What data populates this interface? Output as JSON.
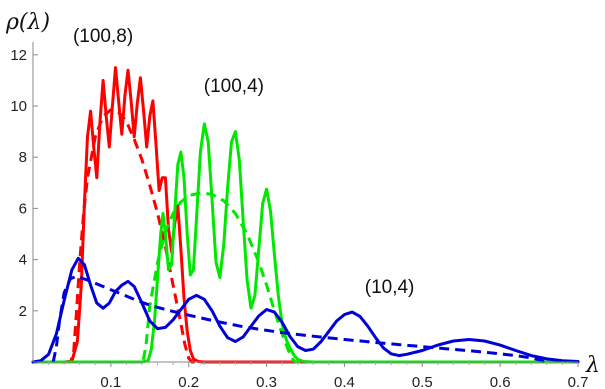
{
  "chart_data": {
    "type": "line",
    "title": "",
    "xlabel": "λ",
    "ylabel": "ρ(λ)",
    "xlim": [
      0,
      0.7
    ],
    "ylim": [
      0,
      12.5
    ],
    "grid": false,
    "legend": "none",
    "x_ticks": [
      {
        "value": 0.1,
        "label": "0.1"
      },
      {
        "value": 0.2,
        "label": "0.2"
      },
      {
        "value": 0.3,
        "label": "0.3"
      },
      {
        "value": 0.4,
        "label": "0.4"
      },
      {
        "value": 0.5,
        "label": "0.5"
      },
      {
        "value": 0.6,
        "label": "0.6"
      },
      {
        "value": 0.7,
        "label": "0.7"
      }
    ],
    "y_ticks": [
      {
        "value": 2,
        "label": "2"
      },
      {
        "value": 4,
        "label": "4"
      },
      {
        "value": 6,
        "label": "6"
      },
      {
        "value": 8,
        "label": "8"
      },
      {
        "value": 10,
        "label": "10"
      },
      {
        "value": 12,
        "label": "12"
      }
    ],
    "annotations": [
      {
        "text": "(100,8)",
        "x": 0.09,
        "y": 12.5
      },
      {
        "text": "(100,4)",
        "x": 0.258,
        "y": 10.55
      },
      {
        "text": "(10,4)",
        "x": 0.458,
        "y": 2.7
      }
    ],
    "series": [
      {
        "color": "#ff0000",
        "style": "solid",
        "points": [
          [
            0.0,
            0
          ],
          [
            0.04,
            0
          ],
          [
            0.05,
            0.03
          ],
          [
            0.057,
            0.8
          ],
          [
            0.062,
            3.0
          ],
          [
            0.066,
            6.2
          ],
          [
            0.07,
            8.8
          ],
          [
            0.074,
            9.8
          ],
          [
            0.078,
            8.4
          ],
          [
            0.082,
            7.2
          ],
          [
            0.086,
            9.4
          ],
          [
            0.09,
            11.0
          ],
          [
            0.094,
            9.6
          ],
          [
            0.098,
            8.4
          ],
          [
            0.102,
            10.0
          ],
          [
            0.106,
            11.5
          ],
          [
            0.11,
            10.2
          ],
          [
            0.114,
            8.9
          ],
          [
            0.118,
            10.4
          ],
          [
            0.122,
            11.4
          ],
          [
            0.126,
            10.2
          ],
          [
            0.13,
            8.8
          ],
          [
            0.134,
            10.1
          ],
          [
            0.138,
            11.1
          ],
          [
            0.142,
            9.8
          ],
          [
            0.146,
            8.4
          ],
          [
            0.15,
            9.6
          ],
          [
            0.154,
            10.2
          ],
          [
            0.158,
            8.5
          ],
          [
            0.162,
            6.7
          ],
          [
            0.166,
            7.2
          ],
          [
            0.17,
            7.2
          ],
          [
            0.174,
            5.2
          ],
          [
            0.178,
            4.3
          ],
          [
            0.182,
            5.4
          ],
          [
            0.186,
            6.1
          ],
          [
            0.19,
            4.4
          ],
          [
            0.194,
            2.5
          ],
          [
            0.198,
            1.2
          ],
          [
            0.202,
            0.45
          ],
          [
            0.206,
            0.12
          ],
          [
            0.212,
            0.02
          ],
          [
            0.22,
            0
          ],
          [
            0.7,
            0
          ]
        ]
      },
      {
        "color": "#ff0000",
        "style": "dashed",
        "points": [
          [
            0.0,
            0
          ],
          [
            0.048,
            0
          ],
          [
            0.052,
            0.3
          ],
          [
            0.056,
            2.0
          ],
          [
            0.06,
            3.9
          ],
          [
            0.065,
            5.8
          ],
          [
            0.07,
            7.2
          ],
          [
            0.08,
            8.8
          ],
          [
            0.09,
            9.6
          ],
          [
            0.1,
            9.85
          ],
          [
            0.11,
            9.75
          ],
          [
            0.12,
            9.4
          ],
          [
            0.13,
            8.7
          ],
          [
            0.14,
            7.9
          ],
          [
            0.15,
            6.9
          ],
          [
            0.16,
            5.8
          ],
          [
            0.17,
            4.5
          ],
          [
            0.18,
            3.0
          ],
          [
            0.19,
            1.5
          ],
          [
            0.195,
            0.7
          ],
          [
            0.2,
            0.15
          ],
          [
            0.204,
            0
          ],
          [
            0.7,
            0
          ]
        ]
      },
      {
        "color": "#00e800",
        "style": "solid",
        "points": [
          [
            0.0,
            0
          ],
          [
            0.14,
            0
          ],
          [
            0.148,
            0.05
          ],
          [
            0.152,
            0.5
          ],
          [
            0.156,
            1.6
          ],
          [
            0.16,
            3.3
          ],
          [
            0.164,
            5.0
          ],
          [
            0.167,
            5.8
          ],
          [
            0.17,
            5.0
          ],
          [
            0.174,
            3.6
          ],
          [
            0.178,
            3.8
          ],
          [
            0.182,
            5.8
          ],
          [
            0.186,
            7.7
          ],
          [
            0.19,
            8.2
          ],
          [
            0.194,
            7.2
          ],
          [
            0.198,
            5.0
          ],
          [
            0.202,
            3.4
          ],
          [
            0.206,
            3.6
          ],
          [
            0.21,
            5.6
          ],
          [
            0.215,
            8.2
          ],
          [
            0.22,
            9.3
          ],
          [
            0.225,
            8.6
          ],
          [
            0.23,
            6.3
          ],
          [
            0.235,
            3.9
          ],
          [
            0.24,
            3.3
          ],
          [
            0.245,
            4.6
          ],
          [
            0.25,
            6.8
          ],
          [
            0.255,
            8.6
          ],
          [
            0.26,
            9.0
          ],
          [
            0.265,
            7.9
          ],
          [
            0.27,
            5.5
          ],
          [
            0.275,
            3.2
          ],
          [
            0.28,
            2.1
          ],
          [
            0.285,
            2.6
          ],
          [
            0.29,
            4.4
          ],
          [
            0.295,
            6.2
          ],
          [
            0.3,
            6.75
          ],
          [
            0.305,
            5.9
          ],
          [
            0.31,
            4.2
          ],
          [
            0.315,
            2.6
          ],
          [
            0.32,
            1.5
          ],
          [
            0.325,
            0.9
          ],
          [
            0.33,
            0.55
          ],
          [
            0.335,
            0.28
          ],
          [
            0.34,
            0.1
          ],
          [
            0.348,
            0.02
          ],
          [
            0.36,
            0
          ],
          [
            0.7,
            0
          ]
        ]
      },
      {
        "color": "#00e800",
        "style": "dashed",
        "points": [
          [
            0.0,
            0
          ],
          [
            0.141,
            0
          ],
          [
            0.145,
            0.6
          ],
          [
            0.15,
            2.2
          ],
          [
            0.16,
            3.9
          ],
          [
            0.17,
            5.1
          ],
          [
            0.18,
            5.8
          ],
          [
            0.19,
            6.25
          ],
          [
            0.2,
            6.5
          ],
          [
            0.215,
            6.6
          ],
          [
            0.23,
            6.55
          ],
          [
            0.245,
            6.3
          ],
          [
            0.26,
            5.8
          ],
          [
            0.275,
            5.0
          ],
          [
            0.29,
            3.9
          ],
          [
            0.3,
            3.0
          ],
          [
            0.31,
            2.0
          ],
          [
            0.32,
            1.1
          ],
          [
            0.328,
            0.45
          ],
          [
            0.334,
            0.1
          ],
          [
            0.337,
            0
          ],
          [
            0.7,
            0
          ]
        ]
      },
      {
        "color": "#0000d8",
        "style": "solid",
        "points": [
          [
            0.0,
            0
          ],
          [
            0.01,
            0.05
          ],
          [
            0.02,
            0.3
          ],
          [
            0.03,
            1.1
          ],
          [
            0.04,
            2.4
          ],
          [
            0.05,
            3.6
          ],
          [
            0.058,
            4.05
          ],
          [
            0.066,
            3.8
          ],
          [
            0.074,
            3.0
          ],
          [
            0.082,
            2.3
          ],
          [
            0.09,
            2.1
          ],
          [
            0.098,
            2.3
          ],
          [
            0.106,
            2.75
          ],
          [
            0.114,
            3.0
          ],
          [
            0.122,
            3.15
          ],
          [
            0.13,
            2.95
          ],
          [
            0.14,
            2.3
          ],
          [
            0.15,
            1.6
          ],
          [
            0.16,
            1.3
          ],
          [
            0.17,
            1.35
          ],
          [
            0.18,
            1.65
          ],
          [
            0.19,
            2.05
          ],
          [
            0.2,
            2.45
          ],
          [
            0.21,
            2.6
          ],
          [
            0.22,
            2.45
          ],
          [
            0.23,
            2.0
          ],
          [
            0.24,
            1.4
          ],
          [
            0.25,
            0.95
          ],
          [
            0.26,
            0.8
          ],
          [
            0.27,
            0.98
          ],
          [
            0.28,
            1.4
          ],
          [
            0.29,
            1.8
          ],
          [
            0.3,
            2.05
          ],
          [
            0.31,
            1.95
          ],
          [
            0.32,
            1.55
          ],
          [
            0.33,
            1.0
          ],
          [
            0.34,
            0.6
          ],
          [
            0.35,
            0.45
          ],
          [
            0.36,
            0.5
          ],
          [
            0.37,
            0.8
          ],
          [
            0.38,
            1.2
          ],
          [
            0.39,
            1.6
          ],
          [
            0.4,
            1.85
          ],
          [
            0.41,
            1.95
          ],
          [
            0.42,
            1.78
          ],
          [
            0.43,
            1.4
          ],
          [
            0.44,
            0.95
          ],
          [
            0.45,
            0.55
          ],
          [
            0.46,
            0.32
          ],
          [
            0.47,
            0.25
          ],
          [
            0.48,
            0.3
          ],
          [
            0.5,
            0.45
          ],
          [
            0.52,
            0.66
          ],
          [
            0.54,
            0.82
          ],
          [
            0.56,
            0.88
          ],
          [
            0.58,
            0.82
          ],
          [
            0.6,
            0.66
          ],
          [
            0.62,
            0.45
          ],
          [
            0.64,
            0.25
          ],
          [
            0.66,
            0.12
          ],
          [
            0.68,
            0.05
          ],
          [
            0.7,
            0.02
          ]
        ]
      },
      {
        "color": "#0000d8",
        "style": "dashed",
        "points": [
          [
            0.026,
            0
          ],
          [
            0.03,
            0.6
          ],
          [
            0.034,
            1.6
          ],
          [
            0.04,
            2.7
          ],
          [
            0.048,
            3.25
          ],
          [
            0.056,
            3.35
          ],
          [
            0.07,
            3.2
          ],
          [
            0.09,
            2.95
          ],
          [
            0.11,
            2.7
          ],
          [
            0.13,
            2.45
          ],
          [
            0.15,
            2.22
          ],
          [
            0.17,
            2.05
          ],
          [
            0.19,
            1.9
          ],
          [
            0.21,
            1.76
          ],
          [
            0.23,
            1.62
          ],
          [
            0.25,
            1.5
          ],
          [
            0.27,
            1.38
          ],
          [
            0.29,
            1.28
          ],
          [
            0.32,
            1.15
          ],
          [
            0.35,
            1.04
          ],
          [
            0.38,
            0.94
          ],
          [
            0.41,
            0.85
          ],
          [
            0.44,
            0.76
          ],
          [
            0.47,
            0.68
          ],
          [
            0.5,
            0.6
          ],
          [
            0.53,
            0.52
          ],
          [
            0.56,
            0.44
          ],
          [
            0.59,
            0.35
          ],
          [
            0.62,
            0.25
          ],
          [
            0.64,
            0.16
          ],
          [
            0.652,
            0.08
          ],
          [
            0.657,
            0
          ]
        ]
      }
    ]
  }
}
